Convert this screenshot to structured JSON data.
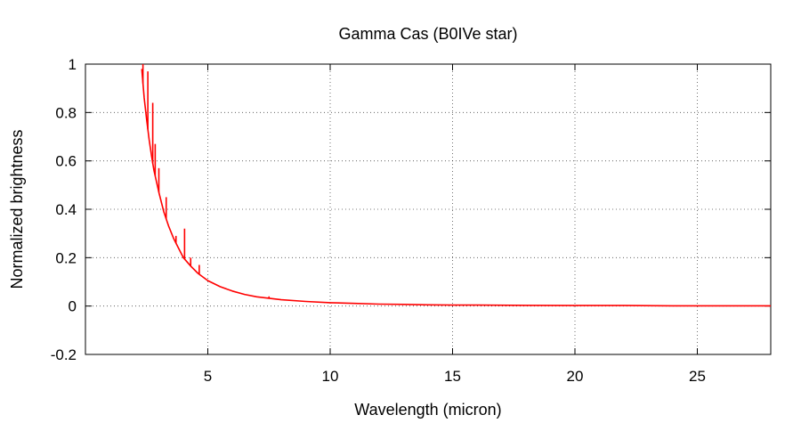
{
  "chart_data": {
    "type": "line",
    "title": "Gamma Cas (B0IVe star)",
    "xlabel": "Wavelength (micron)",
    "ylabel": "Normalized brightness",
    "xlim": [
      0,
      28
    ],
    "ylim": [
      -0.2,
      1
    ],
    "grid": true,
    "x_ticks": [
      5,
      10,
      15,
      20,
      25
    ],
    "x_tick_labels": [
      "5",
      "10",
      "15",
      "20",
      "25"
    ],
    "y_ticks": [
      -0.2,
      0,
      0.2,
      0.4,
      0.6,
      0.8,
      1
    ],
    "y_tick_labels": [
      "-0.2",
      "0",
      "0.2",
      "0.4",
      "0.6",
      "0.8",
      "1"
    ],
    "series": [
      {
        "color": "#ff0000",
        "x": [
          2.3,
          2.4,
          2.5,
          2.6,
          2.7,
          2.8,
          3.0,
          3.2,
          3.4,
          3.6,
          3.8,
          4.0,
          4.3,
          4.6,
          5.0,
          5.5,
          6.0,
          6.5,
          7.0,
          8.0,
          9.0,
          10.0,
          11.0,
          12.0,
          13.0,
          14.0,
          15.0,
          16.0,
          18.0,
          20.0,
          22.0,
          24.0,
          26.0,
          28.0
        ],
        "y": [
          0.98,
          0.86,
          0.77,
          0.69,
          0.62,
          0.56,
          0.47,
          0.39,
          0.33,
          0.28,
          0.24,
          0.2,
          0.165,
          0.135,
          0.105,
          0.08,
          0.062,
          0.048,
          0.038,
          0.026,
          0.019,
          0.014,
          0.011,
          0.008,
          0.007,
          0.005,
          0.004,
          0.004,
          0.003,
          0.002,
          0.002,
          0.001,
          0.001,
          0.001
        ]
      }
    ],
    "emission_lines": [
      {
        "x": 2.35,
        "y": 1.0
      },
      {
        "x": 2.55,
        "y": 0.97
      },
      {
        "x": 2.75,
        "y": 0.84
      },
      {
        "x": 2.85,
        "y": 0.67
      },
      {
        "x": 3.0,
        "y": 0.57
      },
      {
        "x": 3.3,
        "y": 0.45
      },
      {
        "x": 3.7,
        "y": 0.29
      },
      {
        "x": 4.05,
        "y": 0.32
      },
      {
        "x": 4.3,
        "y": 0.2
      },
      {
        "x": 4.65,
        "y": 0.17
      },
      {
        "x": 7.5,
        "y": 0.04
      }
    ]
  }
}
